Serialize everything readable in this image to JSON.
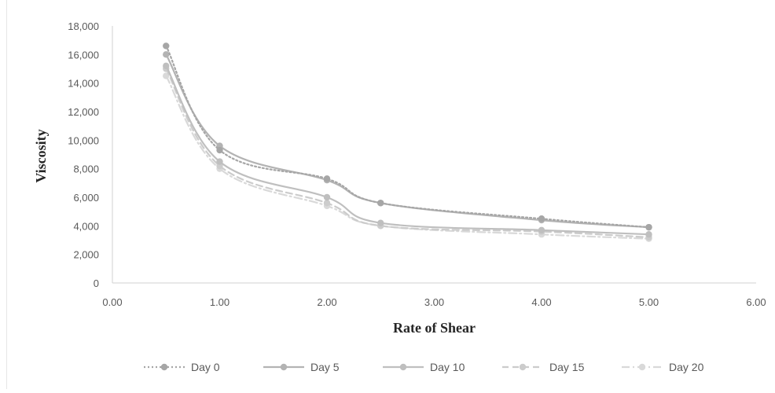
{
  "chart_data": {
    "type": "line",
    "title": "",
    "xlabel": "Rate of Shear",
    "ylabel": "Viscosity",
    "xlim": [
      0,
      6
    ],
    "ylim": [
      0,
      18000
    ],
    "x_ticks": [
      "0.00",
      "1.00",
      "2.00",
      "3.00",
      "4.00",
      "5.00",
      "6.00"
    ],
    "y_ticks": [
      "0",
      "2,000",
      "4,000",
      "6,000",
      "8,000",
      "10,000",
      "12,000",
      "14,000",
      "16,000",
      "18,000"
    ],
    "grid": false,
    "legend_position": "bottom",
    "x": [
      0.5,
      1.0,
      2.0,
      2.5,
      4.0,
      5.0
    ],
    "series": [
      {
        "name": "Day 0",
        "values": [
          16600,
          9300,
          7300,
          5600,
          4500,
          3900
        ],
        "color": "#a6a6a6",
        "dash": "dotted",
        "marker": true
      },
      {
        "name": "Day 5",
        "values": [
          16000,
          9600,
          7200,
          5600,
          4400,
          3900
        ],
        "color": "#b3b3b3",
        "dash": "solid",
        "marker": true
      },
      {
        "name": "Day 10",
        "values": [
          15200,
          8500,
          6000,
          4200,
          3700,
          3400
        ],
        "color": "#bfbfbf",
        "dash": "solid",
        "marker": true
      },
      {
        "name": "Day 15",
        "values": [
          15000,
          8200,
          5600,
          4000,
          3600,
          3200
        ],
        "color": "#cccccc",
        "dash": "dashed",
        "marker": true
      },
      {
        "name": "Day 20",
        "values": [
          14500,
          8000,
          5400,
          4000,
          3400,
          3100
        ],
        "color": "#d9d9d9",
        "dash": "dashdot",
        "marker": true
      }
    ]
  }
}
